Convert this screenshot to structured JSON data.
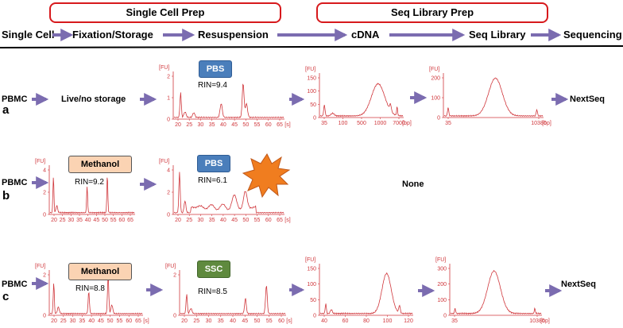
{
  "header": {
    "single_cell_prep": "Single Cell Prep",
    "seq_library_prep": "Seq Library Prep"
  },
  "steps": [
    "Single Cell",
    "Fixation/Storage",
    "Resuspension",
    "cDNA",
    "Seq Library",
    "Sequencing"
  ],
  "rows": [
    {
      "letter": "a",
      "input": "PBMC",
      "storage": "Live/no storage",
      "buffer": "PBS",
      "rin": "RIN=9.4",
      "output": "NextSeq"
    },
    {
      "letter": "b",
      "input": "PBMC",
      "fix": "Methanol",
      "fix_rin": "RIN=9.2",
      "buffer": "PBS",
      "rin": "RIN=6.1",
      "result": "None"
    },
    {
      "letter": "c",
      "input": "PBMC",
      "fix": "Methanol",
      "fix_rin": "RIN=8.8",
      "buffer": "SSC",
      "rin": "RIN=8.5",
      "output": "NextSeq"
    }
  ],
  "axis": {
    "fu": "[FU]",
    "s": "[s]",
    "bp": "[bp]",
    "rna_ticks": [
      "20",
      "25",
      "30",
      "35",
      "40",
      "45",
      "50",
      "55",
      "60",
      "65"
    ],
    "rna_y_ab": [
      "0",
      "1",
      "2"
    ],
    "rna_y_b1": [
      "0",
      "2",
      "4"
    ],
    "rna_y_c": [
      "0",
      "2"
    ],
    "cdna_a_x": [
      "35",
      "100",
      "500",
      "1000",
      "7000"
    ],
    "cdna_a_y": [
      "0",
      "50",
      "100",
      "150"
    ],
    "lib_a_x": [
      "35",
      "10380"
    ],
    "lib_a_y": [
      "0",
      "100",
      "200"
    ],
    "cdna_c_x": [
      "40",
      "60",
      "80",
      "100",
      "120"
    ],
    "cdna_c_y": [
      "0",
      "50",
      "100",
      "150"
    ],
    "lib_c_x": [
      "35",
      "10380"
    ],
    "lib_c_y": [
      "0",
      "100",
      "200",
      "300"
    ]
  },
  "colors": {
    "header_border": "#d7191c",
    "arrow": "#7b6cb0",
    "trace": "#d0373c",
    "starburst": "#f07d1f",
    "pbs": "#4a7ebb",
    "ssc": "#5f8a3e",
    "methanol": "#fbd3b3"
  }
}
